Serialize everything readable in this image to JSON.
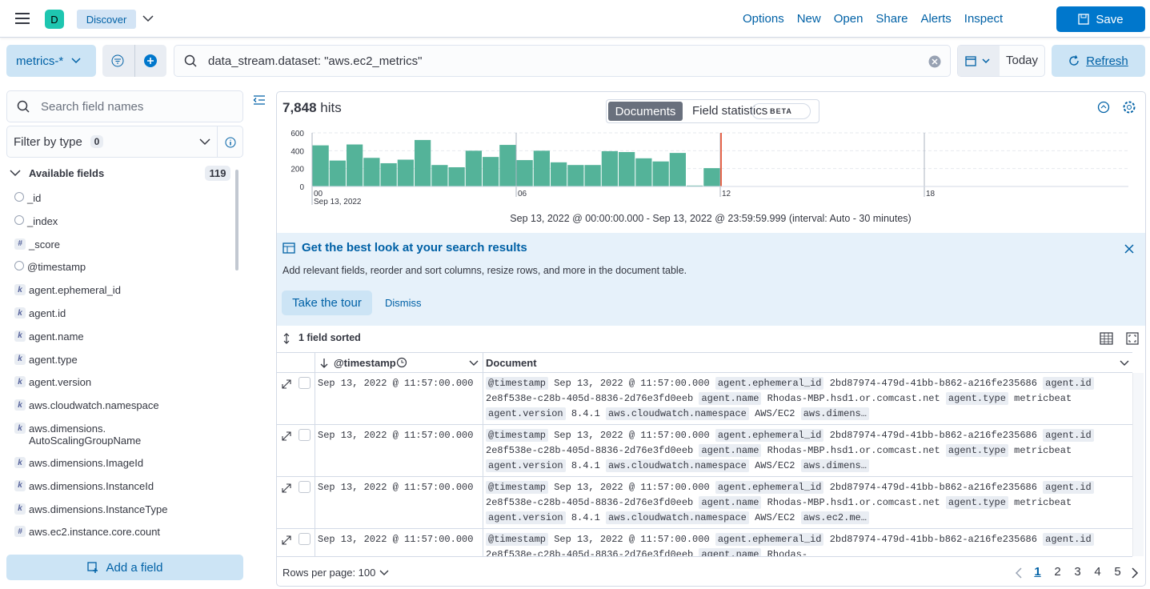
{
  "header": {
    "avatar": "D",
    "app": "Discover",
    "menu": [
      "Options",
      "New",
      "Open",
      "Share",
      "Alerts",
      "Inspect"
    ],
    "save": "Save"
  },
  "query_bar": {
    "data_view": "metrics-*",
    "query": "data_stream.dataset: \"aws.ec2_metrics\"",
    "date": "Today",
    "refresh": "Refresh"
  },
  "sidebar": {
    "search_placeholder": "Search field names",
    "filter_label": "Filter by type",
    "filter_count": 0,
    "available_label": "Available fields",
    "available_count": 119,
    "fields": [
      {
        "name": "_id"
      },
      {
        "name": "_index"
      },
      {
        "name": "_score",
        "icon": "#"
      },
      {
        "name": "@timestamp"
      },
      {
        "name": "agent.ephemeral_id",
        "icon": "k"
      },
      {
        "name": "agent.id",
        "icon": "k"
      },
      {
        "name": "agent.name",
        "icon": "k"
      },
      {
        "name": "agent.type",
        "icon": "k"
      },
      {
        "name": "agent.version",
        "icon": "k"
      },
      {
        "name": "aws.cloudwatch.namespace",
        "icon": "k"
      },
      {
        "name": "aws.dimensions.\nAutoScalingGroupName",
        "icon": "k"
      },
      {
        "name": "aws.dimensions.ImageId",
        "icon": "k"
      },
      {
        "name": "aws.dimensions.InstanceId",
        "icon": "k"
      },
      {
        "name": "aws.dimensions.InstanceType",
        "icon": "k"
      },
      {
        "name": "aws.ec2.instance.core.count",
        "icon": "#"
      }
    ],
    "add_field": "Add a field"
  },
  "hits": {
    "count": "7,848",
    "label": "hits"
  },
  "tabs": {
    "documents": "Documents",
    "field_statistics": "Field statistics",
    "beta": "BETA"
  },
  "histogram": {
    "type": "histogram",
    "color": "#54b399",
    "bins": [
      0,
      0.5,
      1,
      1.5,
      2,
      2.5,
      3,
      3.5,
      4,
      4.5,
      5,
      5.5,
      6,
      6.5,
      7,
      7.5,
      8,
      8.5,
      9,
      9.5,
      10,
      10.5,
      11,
      11.5,
      12
    ],
    "values": [
      460,
      290,
      470,
      320,
      260,
      300,
      520,
      240,
      215,
      400,
      330,
      465,
      295,
      400,
      270,
      240,
      240,
      395,
      385,
      315,
      280,
      375,
      10,
      205
    ],
    "xlim": [
      0,
      24
    ],
    "xticks": [
      {
        "value": 0,
        "label": "00"
      },
      {
        "value": 6,
        "label": "06"
      },
      {
        "value": 12,
        "label": "12"
      },
      {
        "value": 18,
        "label": "18"
      }
    ],
    "x_sublabel": "Sep 13, 2022",
    "ylim": [
      0,
      600
    ],
    "yticks": [
      0,
      200,
      400,
      600
    ],
    "grid": true,
    "caption": "Sep 13, 2022 @ 00:00:00.000 - Sep 13, 2022 @ 23:59:59.999 (interval: Auto - 30 minutes)"
  },
  "callout": {
    "title": "Get the best look at your search results",
    "text": "Add relevant fields, reorder and sort columns, resize rows, and more in the document table.",
    "tour": "Take the tour",
    "dismiss": "Dismiss"
  },
  "table": {
    "sorted": "1 field sorted",
    "columns": [
      "@timestamp",
      "Document"
    ],
    "rows": [
      {
        "timestamp": "Sep 13, 2022 @ 11:57:00.000",
        "fields": [
          [
            "@timestamp",
            "Sep 13, 2022 @ 11:57:00.000"
          ],
          [
            "agent.ephemeral_id",
            "2bd87974-479d-41bb-b862-a216fe235686"
          ],
          [
            "agent.id",
            "2e8f538e-c28b-405d-8836-2d76e3fd0eeb"
          ],
          [
            "agent.name",
            "Rhodas-MBP.hsd1.or.comcast.net"
          ],
          [
            "agent.type",
            "metricbeat"
          ],
          [
            "agent.version",
            "8.4.1"
          ],
          [
            "aws.cloudwatch.namespace",
            "AWS/EC2"
          ],
          [
            "aws.dimens…"
          ]
        ]
      },
      {
        "timestamp": "Sep 13, 2022 @ 11:57:00.000",
        "fields": [
          [
            "@timestamp",
            "Sep 13, 2022 @ 11:57:00.000"
          ],
          [
            "agent.ephemeral_id",
            "2bd87974-479d-41bb-b862-a216fe235686"
          ],
          [
            "agent.id",
            "2e8f538e-c28b-405d-8836-2d76e3fd0eeb"
          ],
          [
            "agent.name",
            "Rhodas-MBP.hsd1.or.comcast.net"
          ],
          [
            "agent.type",
            "metricbeat"
          ],
          [
            "agent.version",
            "8.4.1"
          ],
          [
            "aws.cloudwatch.namespace",
            "AWS/EC2"
          ],
          [
            "aws.dimens…"
          ]
        ]
      },
      {
        "timestamp": "Sep 13, 2022 @ 11:57:00.000",
        "fields": [
          [
            "@timestamp",
            "Sep 13, 2022 @ 11:57:00.000"
          ],
          [
            "agent.ephemeral_id",
            "2bd87974-479d-41bb-b862-a216fe235686"
          ],
          [
            "agent.id",
            "2e8f538e-c28b-405d-8836-2d76e3fd0eeb"
          ],
          [
            "agent.name",
            "Rhodas-MBP.hsd1.or.comcast.net"
          ],
          [
            "agent.type",
            "metricbeat"
          ],
          [
            "agent.version",
            "8.4.1"
          ],
          [
            "aws.cloudwatch.namespace",
            "AWS/EC2"
          ],
          [
            "aws.ec2.me…"
          ]
        ]
      },
      {
        "timestamp": "Sep 13, 2022 @ 11:57:00.000",
        "fields": [
          [
            "@timestamp",
            "Sep 13, 2022 @ 11:57:00.000"
          ],
          [
            "agent.ephemeral_id",
            "2bd87974-479d-41bb-b862-a216fe235686"
          ],
          [
            "agent.id",
            "2e8f538e-c28b-405d-8836-2d76e3fd0eeb"
          ],
          [
            "agent.name",
            "Rhodas-"
          ]
        ]
      }
    ]
  },
  "footer": {
    "rows_per_page": "Rows per page: 100",
    "pages": [
      1,
      2,
      3,
      4,
      5
    ]
  }
}
